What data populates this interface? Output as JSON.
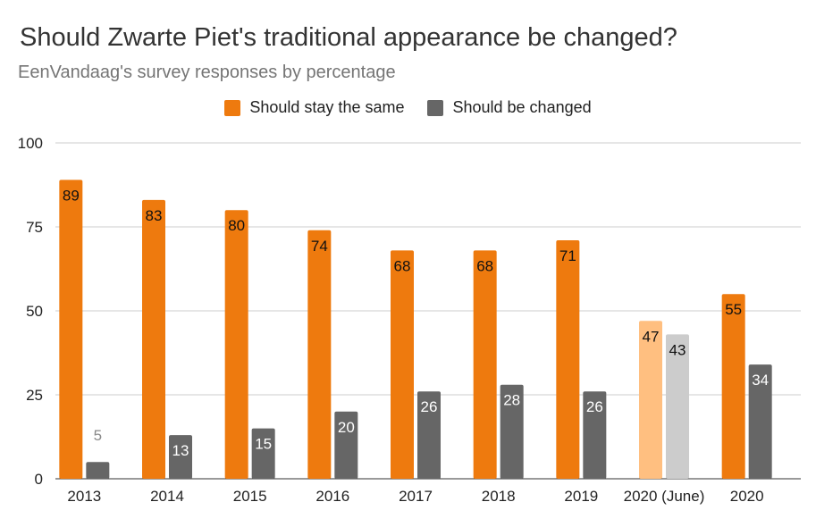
{
  "chart_data": {
    "type": "bar",
    "title": "Should Zwarte Piet's traditional appearance be changed?",
    "subtitle": "EenVandaag's survey responses by percentage",
    "xlabel": "",
    "ylabel": "",
    "ylim": [
      0,
      100
    ],
    "yticks": [
      "0",
      "25",
      "50",
      "75",
      "100"
    ],
    "grid": true,
    "legend_position": "top-center",
    "categories": [
      "2013",
      "2014",
      "2015",
      "2016",
      "2017",
      "2018",
      "2019",
      "2020 (June)",
      "2020"
    ],
    "series": [
      {
        "name": "Should stay the same",
        "color": "#ee7a0e",
        "values": [
          89,
          83,
          80,
          74,
          68,
          68,
          71,
          47,
          55
        ],
        "labels": [
          "89",
          "83",
          "80",
          "74",
          "68",
          "68",
          "71",
          "47",
          "55"
        ]
      },
      {
        "name": "Should be changed",
        "color": "#666666",
        "values": [
          5,
          13,
          15,
          20,
          26,
          28,
          26,
          43,
          34
        ],
        "labels": [
          "5",
          "13",
          "15",
          "20",
          "26",
          "28",
          "26",
          "43",
          "34"
        ]
      }
    ],
    "highlighted_category": {
      "category": "2020 (June)",
      "colors": [
        "#ffbf80",
        "#cccccc"
      ]
    }
  }
}
